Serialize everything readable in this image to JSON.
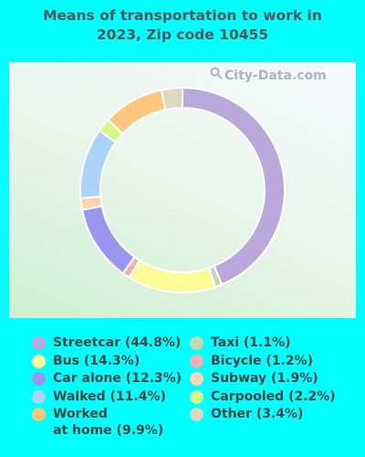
{
  "title_line1": "Means of transportation to work in",
  "title_line2": "2023, Zip code 10455",
  "watermark": "City-Data.com",
  "chart_data": {
    "type": "pie",
    "donut": true,
    "slices": [
      {
        "name": "Streetcar",
        "value": 44.8,
        "label": "Streetcar (44.8%)",
        "color": "#bba8da"
      },
      {
        "name": "Taxi",
        "value": 1.1,
        "label": "Taxi (1.1%)",
        "color": "#c6d8ac"
      },
      {
        "name": "Bus",
        "value": 14.3,
        "label": "Bus (14.3%)",
        "color": "#fbfb95"
      },
      {
        "name": "Bicycle",
        "value": 1.2,
        "label": "Bicycle (1.2%)",
        "color": "#f2b0b4"
      },
      {
        "name": "Car alone",
        "value": 12.3,
        "label": "Car alone (12.3%)",
        "color": "#9a95ef"
      },
      {
        "name": "Subway",
        "value": 1.9,
        "label": "Subway (1.9%)",
        "color": "#fdd4ad"
      },
      {
        "name": "Walked",
        "value": 11.4,
        "label": "Walked (11.4%)",
        "color": "#acd4fb"
      },
      {
        "name": "Carpooled",
        "value": 2.2,
        "label": "Carpooled (2.2%)",
        "color": "#d6f78a"
      },
      {
        "name": "Worked at home",
        "value": 9.9,
        "label": "Worked\nat home (9.9%)",
        "color": "#fdc67d"
      },
      {
        "name": "Other",
        "value": 3.4,
        "label": "Other (3.4%)",
        "color": "#ddd8bf"
      }
    ],
    "legend_left": [
      "Streetcar",
      "Bus",
      "Car alone",
      "Walked",
      "Worked at home"
    ],
    "legend_right": [
      "Taxi",
      "Bicycle",
      "Subway",
      "Carpooled",
      "Other"
    ]
  }
}
